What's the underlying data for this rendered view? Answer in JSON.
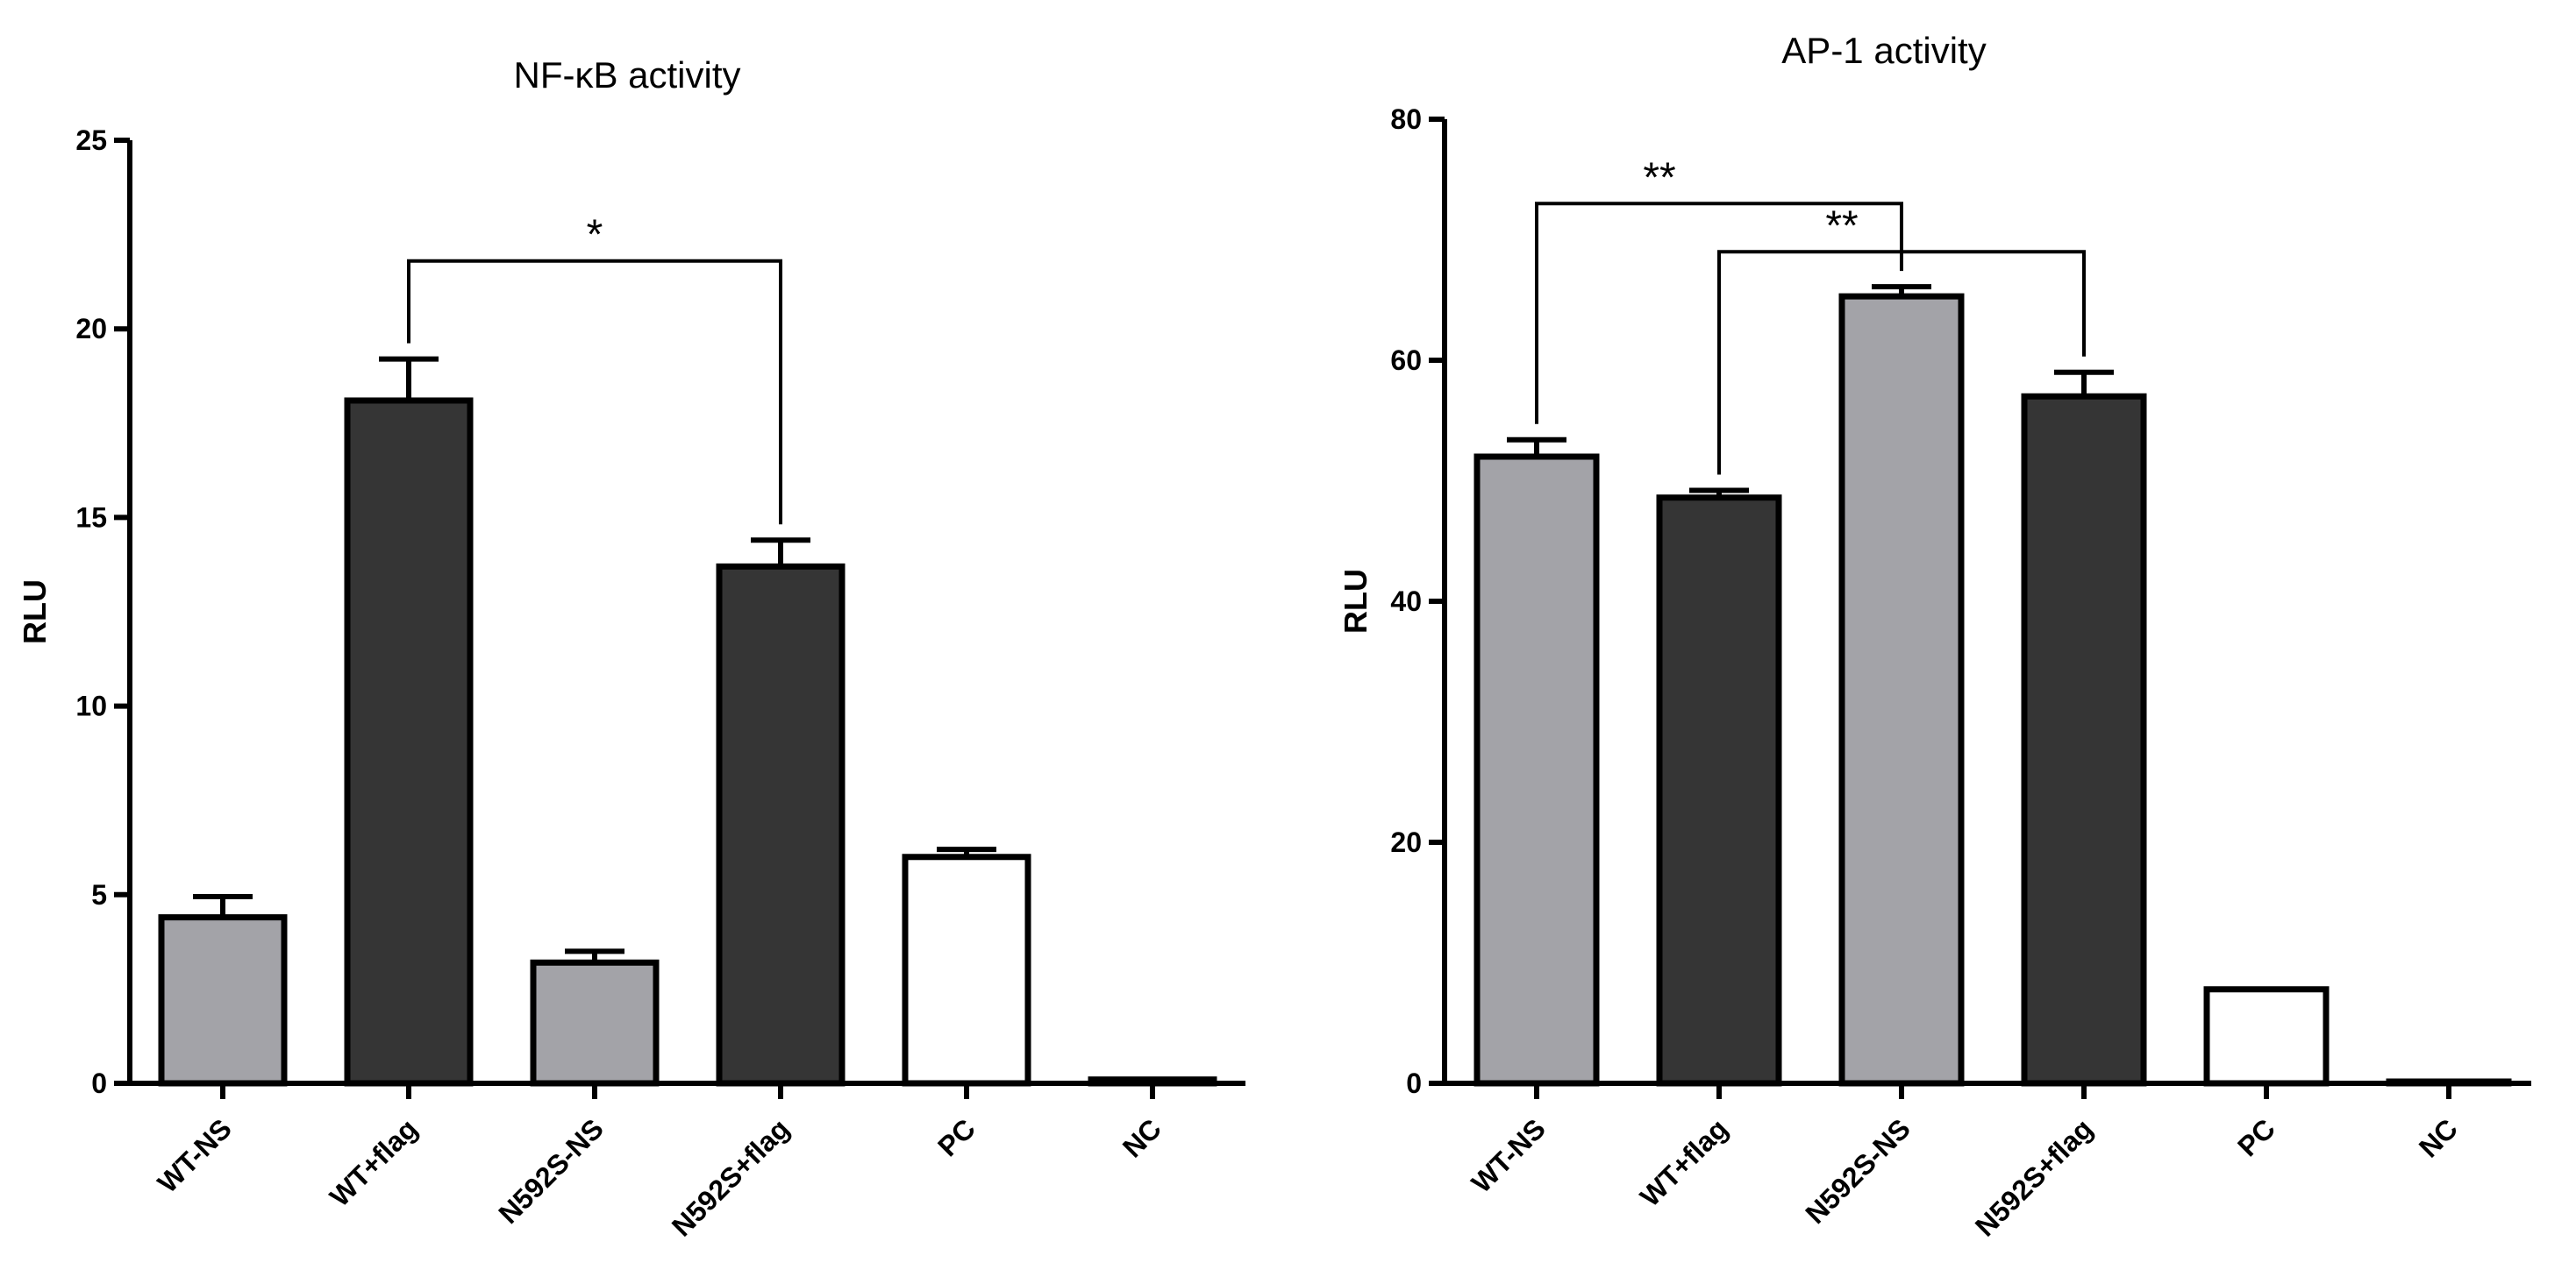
{
  "chart_data": [
    {
      "type": "bar",
      "title": "NF-κB activity",
      "xlabel": "",
      "ylabel": "RLU",
      "ylim": [
        0,
        25
      ],
      "yticks": [
        "0",
        "5",
        "10",
        "15",
        "20",
        "25"
      ],
      "categories": [
        "WT-NS",
        "WT+flag",
        "N592S-NS",
        "N592S+flag",
        "PC",
        "NC"
      ],
      "values": [
        4.4,
        18.1,
        3.2,
        13.7,
        6.0,
        0.1
      ],
      "errors": [
        0.55,
        1.1,
        0.3,
        0.7,
        0.2,
        0.0
      ],
      "fill_colors": [
        "#a3a3a8",
        "#353535",
        "#a3a3a8",
        "#353535",
        "#ffffff",
        "#ffffff"
      ],
      "grid": false,
      "significance": [
        {
          "from": 1,
          "to": 3,
          "label": "*",
          "level": 21.8
        }
      ]
    },
    {
      "type": "bar",
      "title": "AP-1 activity",
      "xlabel": "",
      "ylabel": "RLU",
      "ylim": [
        0,
        80
      ],
      "yticks": [
        "0",
        "20",
        "40",
        "60",
        "80"
      ],
      "categories": [
        "WT-NS",
        "WT+flag",
        "N592S-NS",
        "N592S+flag",
        "PC",
        "NC"
      ],
      "values": [
        52.0,
        48.6,
        65.3,
        57.0,
        7.8,
        0.1
      ],
      "errors": [
        1.4,
        0.6,
        0.8,
        2.0,
        0.0,
        0.0
      ],
      "fill_colors": [
        "#a3a3a8",
        "#353535",
        "#a3a3a8",
        "#353535",
        "#ffffff",
        "#ffffff"
      ],
      "grid": false,
      "significance": [
        {
          "from": 0,
          "to": 2,
          "label": "**",
          "level": 73.0
        },
        {
          "from": 1,
          "to": 3,
          "label": "**",
          "level": 69.0
        }
      ]
    }
  ]
}
